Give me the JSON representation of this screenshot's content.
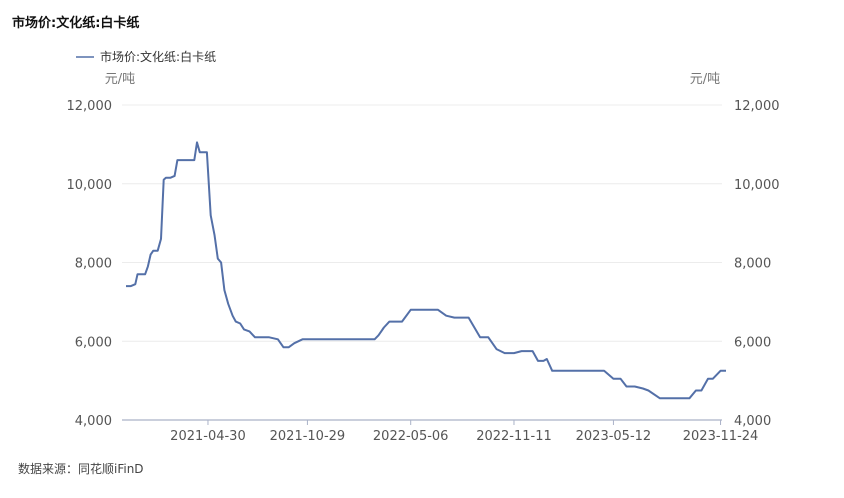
{
  "title": "市场价:文化纸:白卡纸",
  "source": "数据来源：同花顺iFinD",
  "chart_data": {
    "type": "line",
    "title": "市场价:文化纸:白卡纸",
    "legend": {
      "position": "top-left",
      "entries": [
        "市场价:文化纸:白卡纸"
      ]
    },
    "ylabel_left": "元/吨",
    "ylabel_right": "元/吨",
    "ylim": [
      4000,
      12000
    ],
    "yticks": [
      "12,000",
      "10,000",
      "8,000",
      "6,000",
      "4,000"
    ],
    "yticks_right": [
      "12,000",
      "10,000",
      "8,000",
      "6,000",
      "4,000"
    ],
    "x_tick_labels": [
      "2021-04-30",
      "2021-10-29",
      "2022-05-06",
      "2022-11-11",
      "2023-05-12",
      "2023-11-24"
    ],
    "x_tick_dates": [
      "2021-04-30",
      "2021-10-29",
      "2022-05-06",
      "2022-11-11",
      "2023-05-12",
      "2023-11-24"
    ],
    "grid": true,
    "color": "#5470a8",
    "series": [
      {
        "name": "市场价:文化纸:白卡纸",
        "x": [
          "2020-12-01",
          "2020-12-10",
          "2020-12-18",
          "2020-12-22",
          "2021-01-05",
          "2021-01-10",
          "2021-01-15",
          "2021-01-20",
          "2021-01-28",
          "2021-02-03",
          "2021-02-08",
          "2021-02-12",
          "2021-02-20",
          "2021-02-28",
          "2021-03-05",
          "2021-03-15",
          "2021-03-25",
          "2021-04-05",
          "2021-04-10",
          "2021-04-15",
          "2021-04-20",
          "2021-04-28",
          "2021-05-05",
          "2021-05-12",
          "2021-05-18",
          "2021-05-24",
          "2021-05-30",
          "2021-06-06",
          "2021-06-14",
          "2021-06-20",
          "2021-06-28",
          "2021-07-05",
          "2021-07-15",
          "2021-07-25",
          "2021-08-05",
          "2021-08-20",
          "2021-09-05",
          "2021-09-15",
          "2021-09-25",
          "2021-10-05",
          "2021-10-20",
          "2021-10-25",
          "2021-11-05",
          "2021-11-15",
          "2021-11-25",
          "2021-12-10",
          "2022-01-10",
          "2022-02-10",
          "2022-03-01",
          "2022-03-08",
          "2022-03-18",
          "2022-03-28",
          "2022-04-08",
          "2022-04-20",
          "2022-05-06",
          "2022-06-06",
          "2022-06-15",
          "2022-06-25",
          "2022-07-10",
          "2022-07-25",
          "2022-08-10",
          "2022-08-20",
          "2022-09-10",
          "2022-09-15",
          "2022-09-25",
          "2022-10-10",
          "2022-10-25",
          "2022-11-11",
          "2022-11-25",
          "2022-12-06",
          "2022-12-15",
          "2022-12-25",
          "2023-01-04",
          "2023-01-10",
          "2023-01-20",
          "2023-02-20",
          "2023-03-10",
          "2023-03-25",
          "2023-04-05",
          "2023-04-15",
          "2023-04-25",
          "2023-05-12",
          "2023-05-25",
          "2023-06-05",
          "2023-06-20",
          "2023-07-05",
          "2023-07-15",
          "2023-08-05",
          "2023-09-05",
          "2023-09-15",
          "2023-09-28",
          "2023-10-10",
          "2023-10-20",
          "2023-11-01",
          "2023-11-10",
          "2023-11-24",
          "2023-12-04"
        ],
        "y": [
          7400,
          7400,
          7450,
          7700,
          7700,
          7900,
          8200,
          8300,
          8300,
          8600,
          10100,
          10150,
          10150,
          10200,
          10600,
          10600,
          10600,
          10600,
          11050,
          10800,
          10800,
          10800,
          9200,
          8700,
          8100,
          8000,
          7300,
          6950,
          6650,
          6500,
          6450,
          6300,
          6250,
          6100,
          6100,
          6100,
          6050,
          5850,
          5850,
          5950,
          6050,
          6050,
          6050,
          6050,
          6050,
          6050,
          6050,
          6050,
          6050,
          6150,
          6350,
          6500,
          6500,
          6500,
          6800,
          6800,
          6800,
          6800,
          6650,
          6600,
          6600,
          6600,
          6100,
          6100,
          6100,
          5800,
          5700,
          5700,
          5750,
          5750,
          5750,
          5500,
          5500,
          5550,
          5250,
          5250,
          5250,
          5250,
          5250,
          5250,
          5250,
          5050,
          5050,
          4850,
          4850,
          4800,
          4750,
          4550,
          4550,
          4550,
          4550,
          4750,
          4750,
          5050,
          5050,
          5250,
          5250
        ]
      }
    ]
  }
}
